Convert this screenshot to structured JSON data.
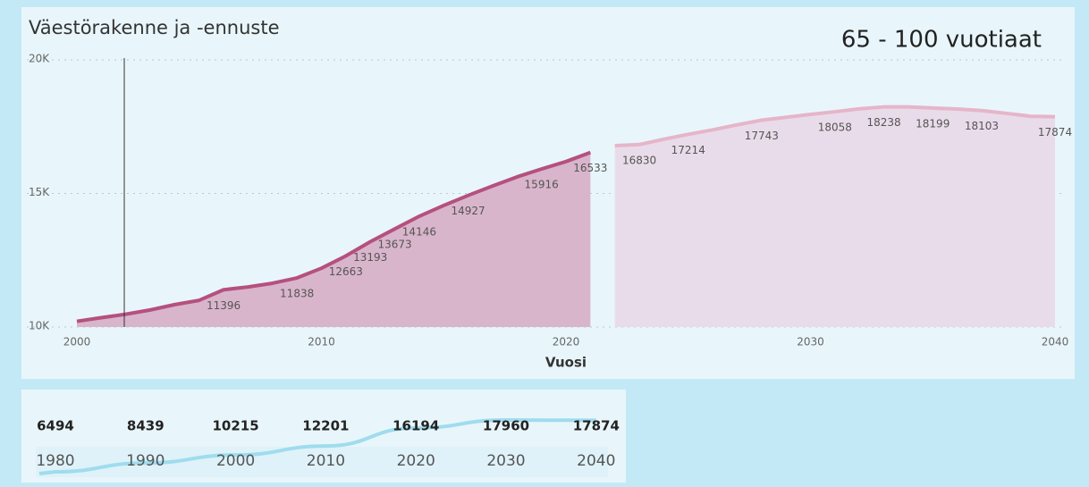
{
  "header": "65 - 100 vuotiaat",
  "chart_data": [
    {
      "type": "area",
      "title": "Väestörakenne ja -ennuste",
      "x_label": "Vuosi",
      "xlim": [
        2000,
        2040
      ],
      "xticks": [
        2000,
        2010,
        2020,
        2030,
        2040
      ],
      "ylim": [
        10000,
        20000
      ],
      "yticks": [
        {
          "value": 10000,
          "label": "10K"
        },
        {
          "value": 15000,
          "label": "15K"
        },
        {
          "value": 20000,
          "label": "20K"
        }
      ],
      "grid": true,
      "series": [
        {
          "color": "#b5507f",
          "fill": "#d9b5cc",
          "x": [
            2000,
            2001,
            2002,
            2003,
            2004,
            2005,
            2006,
            2007,
            2008,
            2009,
            2010,
            2011,
            2012,
            2013,
            2014,
            2015,
            2016,
            2017,
            2018,
            2019,
            2020,
            2021
          ],
          "values": [
            10215,
            10350,
            10480,
            10640,
            10840,
            11000,
            11396,
            11500,
            11640,
            11838,
            12201,
            12663,
            13193,
            13673,
            14146,
            14550,
            14927,
            15280,
            15620,
            15916,
            16194,
            16533
          ],
          "value_labels": [
            null,
            null,
            null,
            null,
            null,
            null,
            "11396",
            null,
            null,
            "11838",
            null,
            "12663",
            "13193",
            "13673",
            "14146",
            null,
            "14927",
            null,
            null,
            "15916",
            null,
            "16533"
          ]
        },
        {
          "color": "#e6b5c9",
          "fill": "#e9dcea",
          "x": [
            2022,
            2023,
            2024,
            2025,
            2026,
            2027,
            2028,
            2029,
            2030,
            2031,
            2032,
            2033,
            2034,
            2035,
            2036,
            2037,
            2038,
            2039,
            2040
          ],
          "values": [
            16790,
            16830,
            17030,
            17214,
            17380,
            17570,
            17743,
            17850,
            17960,
            18058,
            18170,
            18238,
            18240,
            18199,
            18160,
            18103,
            18000,
            17890,
            17874
          ],
          "value_labels": [
            null,
            "16830",
            null,
            "17214",
            null,
            null,
            "17743",
            null,
            null,
            "18058",
            null,
            "18238",
            null,
            "18199",
            null,
            "18103",
            null,
            null,
            "17874"
          ]
        }
      ]
    },
    {
      "type": "line",
      "color": "#9fdcee",
      "x": [
        1980,
        1990,
        2000,
        2010,
        2020,
        2030,
        2040
      ],
      "values": [
        6494,
        8439,
        10215,
        12201,
        16194,
        17960,
        17874
      ]
    }
  ]
}
